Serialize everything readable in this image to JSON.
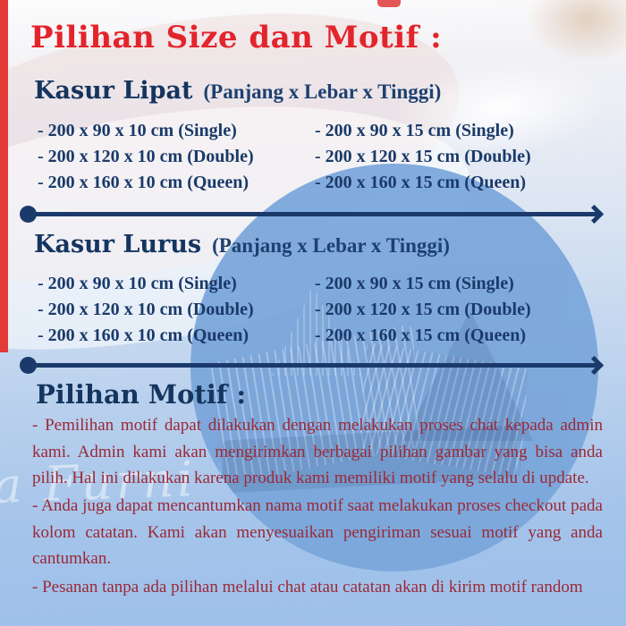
{
  "page": {
    "title": "Pilihan Size dan Motif :",
    "watermark_fragment": "a Furni"
  },
  "sections": [
    {
      "heading": "Kasur Lipat",
      "heading_note": "(Panjang x Lebar x Tinggi)",
      "col1": [
        "- 200 x 90 x 10 cm (Single)",
        "- 200 x 120 x 10 cm (Double)",
        "- 200 x 160 x 10 cm (Queen)"
      ],
      "col2": [
        "- 200 x 90 x 15 cm (Single)",
        "- 200 x 120 x 15 cm (Double)",
        "- 200 x 160 x 15 cm (Queen)"
      ]
    },
    {
      "heading": "Kasur Lurus",
      "heading_note": "(Panjang x Lebar x Tinggi)",
      "col1": [
        "- 200 x 90 x 10 cm (Single)",
        "- 200 x 120 x 10 cm (Double)",
        "- 200 x 160 x 10 cm (Queen)"
      ],
      "col2": [
        "- 200 x 90 x 15 cm (Single)",
        "- 200 x 120 x 15 cm (Double)",
        "- 200 x 160 x 15 cm (Queen)"
      ]
    }
  ],
  "motif": {
    "heading": "Pilihan Motif :",
    "paragraphs": [
      "- Pemilihan motif dapat dilakukan dengan melakukan proses chat kepada admin kami. Admin kami akan mengirimkan berbagai pilihan gambar yang bisa anda pilih. Hal ini dilakukan karena produk kami memiliki motif yang selalu di update.",
      "- Anda juga dapat mencantumkan nama motif saat melakukan proses checkout pada kolom catatan. Kami akan menyesuaikan pengiriman sesuai motif yang anda cantumkan.",
      "- Pesanan tanpa ada pilihan melalui chat atau catatan akan di kirim motif random"
    ]
  },
  "colors": {
    "accent_red": "#e3242b",
    "navy": "#1b3a6b",
    "maroon": "#9c2836",
    "circle_blue": "#7aa6da",
    "background_blue": "#9dc0e9"
  }
}
